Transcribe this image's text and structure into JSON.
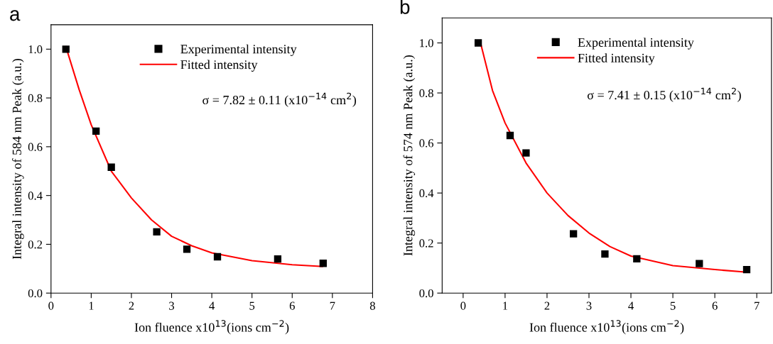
{
  "chart_data": [
    {
      "type": "scatter",
      "title": "a",
      "xlabel": "Ion fluence x10$^{13}$(ions cm$^{−2}$)",
      "ylabel": "Integral intensity of 584 nm Peak (a.u.)",
      "annotations": [
        "σ = 7.82 ± 0.11 (x10$^{−14}$ cm$^{2}$)"
      ],
      "xlim": [
        0,
        8
      ],
      "xticks": [
        0,
        1,
        2,
        3,
        4,
        5,
        6,
        7,
        8
      ],
      "ylim": [
        0,
        1.1
      ],
      "yticks": [
        {
          "value": 0,
          "label": "0.0"
        },
        {
          "value": 0.2,
          "label": "0.2"
        },
        {
          "value": 0.4,
          "label": "0.4"
        },
        {
          "value": 0.6,
          "label": "0.6"
        },
        {
          "value": 0.8,
          "label": "0.8"
        },
        {
          "value": 1.0,
          "label": "1.0"
        }
      ],
      "grid": false,
      "legend": "top right",
      "series": [
        {
          "name": "Experimental intensity",
          "marker": "square",
          "color": "#000000",
          "x": [
            0.37,
            1.12,
            1.5,
            2.63,
            3.38,
            4.14,
            5.64,
            6.77
          ],
          "values": [
            1.0,
            0.664,
            0.516,
            0.251,
            0.18,
            0.149,
            0.14,
            0.122
          ]
        },
        {
          "name": "Fitted intensity",
          "type": "line",
          "marker": "none",
          "color": "#ff0000",
          "x": [
            0.37,
            0.7,
            1.0,
            1.5,
            2.0,
            2.5,
            3.0,
            3.5,
            4.0,
            5.0,
            6.0,
            6.75
          ],
          "values": [
            1.01,
            0.834,
            0.69,
            0.5,
            0.39,
            0.3,
            0.233,
            0.194,
            0.165,
            0.133,
            0.116,
            0.109
          ]
        }
      ]
    },
    {
      "type": "scatter",
      "title": "b",
      "xlabel": "Ion fluence x10$^{13}$(ions cm$^{−2}$)",
      "ylabel": "Integral intensity of 574 nm Peak (a.u.)",
      "annotations": [
        "σ = 7.41 ± 0.15 (x10$^{−14}$ cm$^{2}$)"
      ],
      "xlim": [
        -0.5,
        7.35
      ],
      "xticks": [
        0,
        1,
        2,
        3,
        4,
        5,
        6,
        7
      ],
      "ylim": [
        0,
        1.1
      ],
      "yticks": [
        {
          "value": 0,
          "label": "0.0"
        },
        {
          "value": 0.2,
          "label": "0.2"
        },
        {
          "value": 0.4,
          "label": "0.4"
        },
        {
          "value": 0.6,
          "label": "0.6"
        },
        {
          "value": 0.8,
          "label": "0.8"
        },
        {
          "value": 1.0,
          "label": "1.0"
        }
      ],
      "grid": false,
      "legend": "top right",
      "series": [
        {
          "name": "Experimental intensity",
          "marker": "square",
          "color": "#000000",
          "x": [
            0.36,
            1.12,
            1.5,
            2.63,
            3.38,
            4.14,
            5.63,
            6.76
          ],
          "values": [
            1.0,
            0.63,
            0.56,
            0.237,
            0.156,
            0.137,
            0.118,
            0.094
          ]
        },
        {
          "name": "Fitted intensity",
          "type": "line",
          "marker": "none",
          "color": "#ff0000",
          "x": [
            0.4,
            0.7,
            1.0,
            1.5,
            2.0,
            2.5,
            3.0,
            3.5,
            4.0,
            5.0,
            6.0,
            6.75
          ],
          "values": [
            1.01,
            0.81,
            0.68,
            0.52,
            0.4,
            0.31,
            0.24,
            0.186,
            0.148,
            0.11,
            0.094,
            0.084
          ]
        }
      ]
    }
  ]
}
